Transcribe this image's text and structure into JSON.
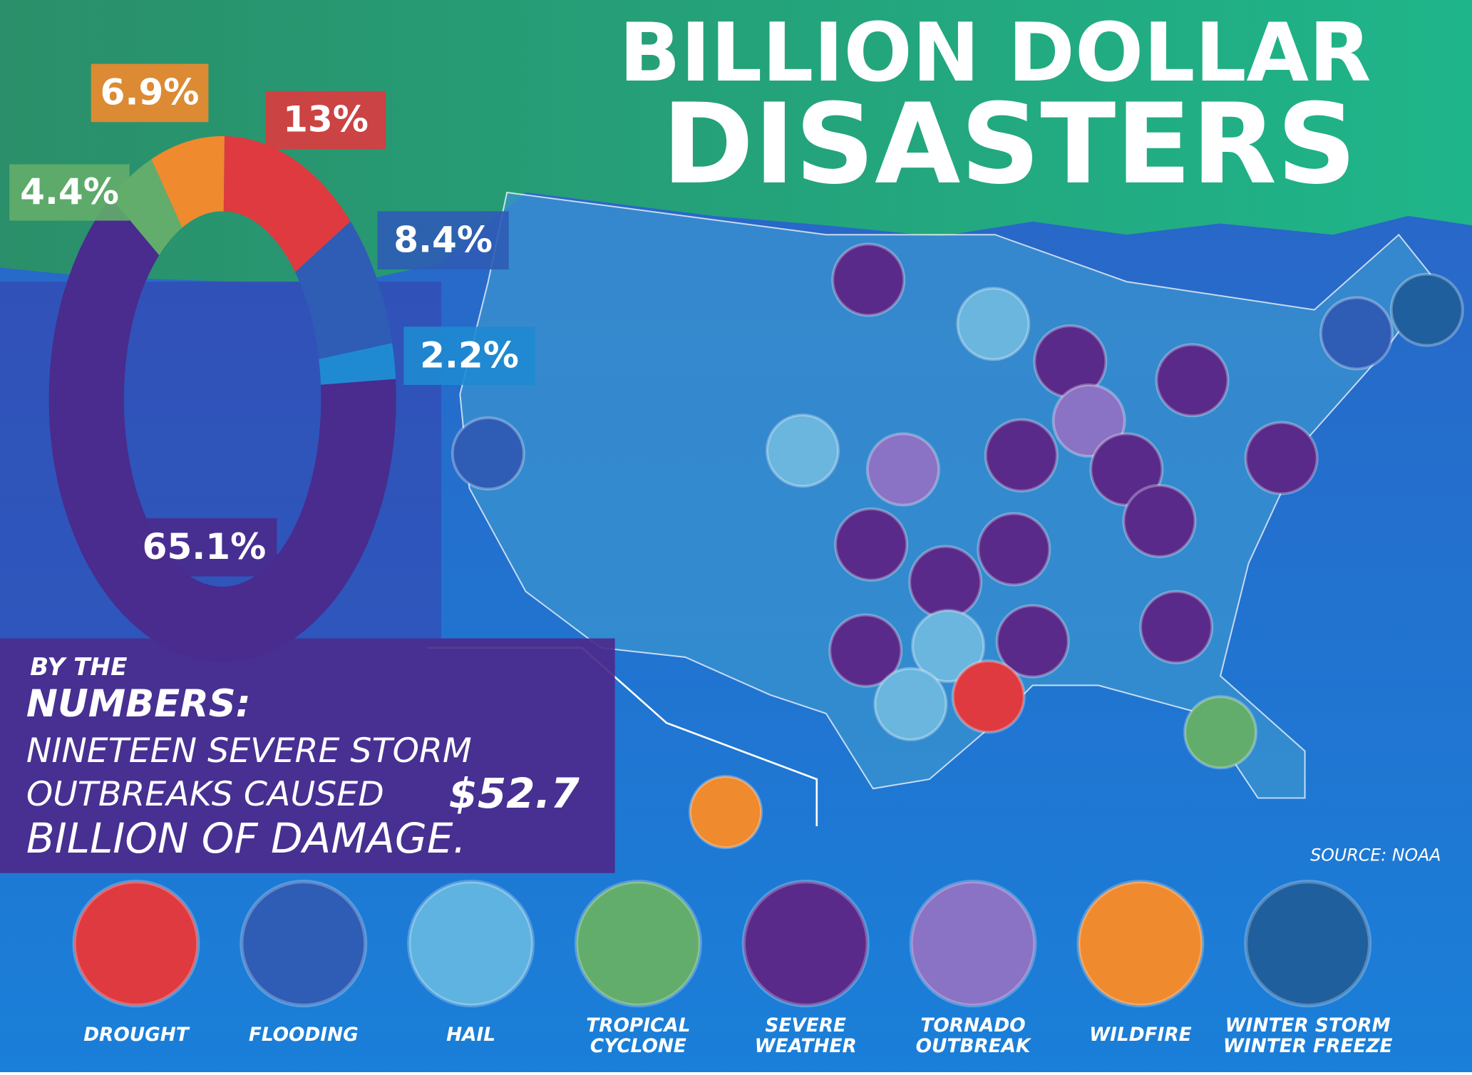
{
  "header": {
    "title_line1": "BILLION DOLLAR",
    "title_line2": "DISASTERS"
  },
  "chart_data": {
    "type": "donut",
    "values": [
      4.4,
      6.9,
      13,
      8.4,
      2.2,
      65.1
    ],
    "value_labels": [
      "4.4%",
      "6.9%",
      "13%",
      "8.4%",
      "2.2%",
      "65.1%"
    ],
    "colors": [
      "#63ad6c",
      "#ef8a2e",
      "#de3a3f",
      "#2f5cb5",
      "#1f8ad2",
      "#4a2b8e"
    ]
  },
  "headline": {
    "kicker_small": "BY THE",
    "kicker_big": "NUMBERS:",
    "line1": "NINETEEN SEVERE STORM",
    "line2": "OUTBREAKS CAUSED",
    "amount": "$52.7",
    "line3": "BILLION OF DAMAGE."
  },
  "source": "SOURCE: NOAA",
  "legend": [
    {
      "label": "DROUGHT",
      "color": "#de3a3f"
    },
    {
      "label": "FLOODING",
      "color": "#2f5cb5"
    },
    {
      "label": "HAIL",
      "color": "#5fb3e0"
    },
    {
      "label": [
        "TROPICAL",
        "CYCLONE"
      ],
      "color": "#63ad6c"
    },
    {
      "label": [
        "SEVERE",
        "WEATHER"
      ],
      "color": "#5a2a8a"
    },
    {
      "label": [
        "TORNADO",
        "OUTBREAK"
      ],
      "color": "#8a72c4"
    },
    {
      "label": "WILDFIRE",
      "color": "#ef8a2e"
    },
    {
      "label": [
        "WINTER STORM",
        "WINTER FREEZE"
      ],
      "color": "#1f5f9e"
    }
  ]
}
